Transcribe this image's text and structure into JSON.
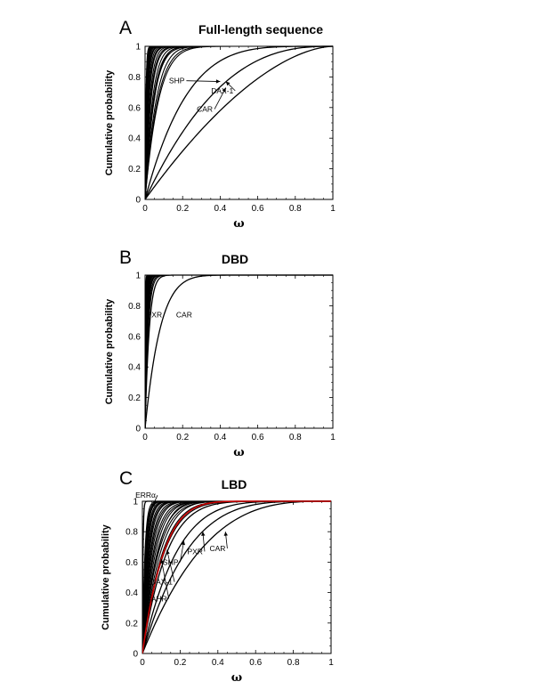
{
  "chart_data": [
    {
      "type": "line",
      "panel_label": "A",
      "title": "Full-length sequence",
      "xlabel": "ω",
      "ylabel": "Cumulative probability",
      "xlim": [
        0,
        1
      ],
      "ylim": [
        0,
        1
      ],
      "xticks": [
        "0",
        "0.2",
        "0.4",
        "0.6",
        "0.8",
        "1"
      ],
      "yticks": [
        "0",
        "0.2",
        "0.4",
        "0.6",
        "0.8",
        "1"
      ],
      "family_curves": {
        "count": 22,
        "k_min": 7,
        "k_max": 110,
        "x_end_min": 0.35,
        "x_end_max": 0.75
      },
      "labeled_series": [
        {
          "name": "SHP",
          "k": 4.6,
          "x_end": 1.0,
          "color": "#000000"
        },
        {
          "name": "CAR",
          "k": 2.6,
          "x_end": 1.0,
          "color": "#000000"
        },
        {
          "name": "DAX-1",
          "k": 1.7,
          "x_end": 1.0,
          "color": "#000000"
        }
      ],
      "annotations": [
        {
          "text": "SHP",
          "label_at": [
            0.22,
            0.775
          ],
          "arrow_to": [
            0.4,
            0.77
          ]
        },
        {
          "text": "DAX-1",
          "label_at": [
            0.48,
            0.71
          ],
          "arrow_to": [
            0.43,
            0.77
          ]
        },
        {
          "text": "CAR",
          "label_at": [
            0.37,
            0.59
          ],
          "arrow_to": [
            0.43,
            0.73
          ]
        }
      ]
    },
    {
      "type": "line",
      "panel_label": "B",
      "title": "DBD",
      "xlabel": "ω",
      "ylabel": "Cumulative probability",
      "xlim": [
        0,
        1
      ],
      "ylim": [
        0,
        1
      ],
      "xticks": [
        "0",
        "0.2",
        "0.4",
        "0.6",
        "0.8",
        "1"
      ],
      "yticks": [
        "0",
        "0.2",
        "0.4",
        "0.6",
        "0.8",
        "1"
      ],
      "family_curves": {
        "count": 22,
        "k_min": 22,
        "k_max": 160,
        "x_end_min": 0.2,
        "x_end_max": 0.5
      },
      "labeled_series": [
        {
          "name": "PXR",
          "k": 18,
          "x_end": 0.4,
          "color": "#000000"
        },
        {
          "name": "CAR",
          "k": 8,
          "x_end": 0.65,
          "color": "#000000"
        }
      ],
      "annotations": [
        {
          "text": "PXR",
          "label_at": [
            0.1,
            0.74
          ],
          "arrow_to": null
        },
        {
          "text": "CAR",
          "label_at": [
            0.26,
            0.74
          ],
          "arrow_to": null
        }
      ]
    },
    {
      "type": "line",
      "panel_label": "C",
      "title": "LBD",
      "xlabel": "ω",
      "ylabel": "Cumulative probability",
      "xlim": [
        0,
        1
      ],
      "ylim": [
        0,
        1
      ],
      "xticks": [
        "0",
        "0.2",
        "0.4",
        "0.6",
        "0.8",
        "1"
      ],
      "yticks": [
        "0",
        "0.2",
        "0.4",
        "0.6",
        "0.8",
        "1"
      ],
      "family_curves": {
        "count": 22,
        "k_min": 5.5,
        "k_max": 45,
        "x_end_min": 0.45,
        "x_end_max": 0.85
      },
      "labeled_series": [
        {
          "name": "ERRα",
          "k": 55,
          "x_end": 0.18,
          "color": "#000000"
        },
        {
          "name": "SHP",
          "k": 5.2,
          "x_end": 0.95,
          "color": "#000000"
        },
        {
          "name": "PXR",
          "k": 4.2,
          "x_end": 1.0,
          "color": "#000000"
        },
        {
          "name": "CAR",
          "k": 3.1,
          "x_end": 1.0,
          "color": "#000000"
        },
        {
          "name": "DAX-1",
          "k": 7,
          "x_end": 0.9,
          "color": "#000000"
        },
        {
          "name": "AHR",
          "k": 6.2,
          "x_end": 0.7,
          "color": "#cc0000"
        }
      ],
      "annotations": [
        {
          "text": "ERRα",
          "label_at": [
            0.08,
            1.04
          ],
          "arrow_to": [
            0.05,
            0.955
          ]
        },
        {
          "text": "SHP",
          "label_at": [
            0.2,
            0.6
          ],
          "arrow_to": [
            0.22,
            0.74
          ]
        },
        {
          "text": "PXR",
          "label_at": [
            0.33,
            0.67
          ],
          "arrow_to": [
            0.32,
            0.8
          ]
        },
        {
          "text": "CAR",
          "label_at": [
            0.45,
            0.69
          ],
          "arrow_to": [
            0.44,
            0.8
          ]
        },
        {
          "text": "DAX-1",
          "label_at": [
            0.17,
            0.47
          ],
          "arrow_to": [
            0.13,
            0.68
          ]
        },
        {
          "text": "AHR",
          "label_at": [
            0.14,
            0.36
          ],
          "arrow_to": [
            0.1,
            0.62
          ]
        }
      ]
    }
  ]
}
